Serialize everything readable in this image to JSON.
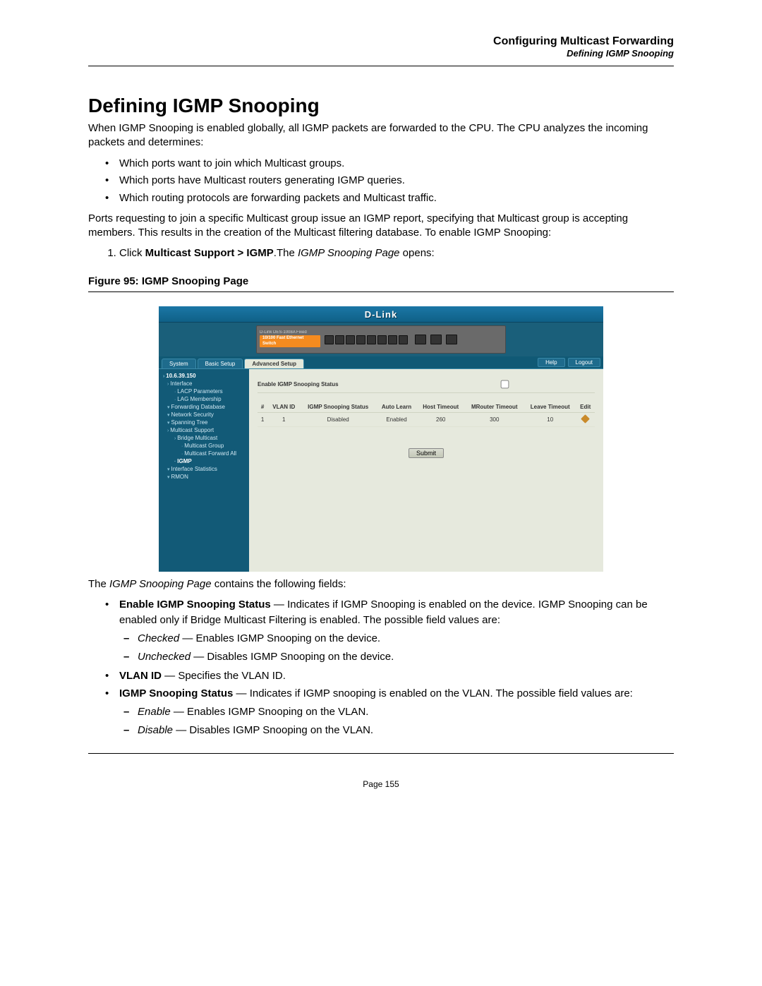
{
  "header": {
    "chapter": "Configuring Multicast Forwarding",
    "section": "Defining IGMP Snooping"
  },
  "title": "Defining IGMP Snooping",
  "intro_para": "When IGMP Snooping is enabled globally, all IGMP packets are forwarded to the CPU. The CPU analyzes the incoming packets and determines:",
  "intro_bullets": [
    "Which ports want to join which Multicast groups.",
    "Which ports have Multicast routers generating IGMP queries.",
    "Which routing protocols are forwarding packets and Multicast traffic."
  ],
  "para2": "Ports requesting to join a specific Multicast group issue an IGMP report, specifying that Multicast group is accepting members. This results in the creation of the Multicast filtering database. To enable IGMP Snooping:",
  "step1_prefix": "Click ",
  "step1_bold": "Multicast Support > IGMP",
  "step1_mid": ".The ",
  "step1_ital": "IGMP Snooping Page",
  "step1_suffix": " opens:",
  "figure_caption": "Figure 95:  IGMP Snooping Page",
  "screenshot": {
    "brand": "D-Link",
    "device_name_line1": "D-Link",
    "device_name_line2": "DES-1008A Fixed",
    "device_badge": "10/100 Fast Ethernet Switch",
    "tabs": {
      "system": "System",
      "basic": "Basic Setup",
      "advanced": "Advanced Setup"
    },
    "top_buttons": {
      "help": "Help",
      "logout": "Logout"
    },
    "sidebar": {
      "root": "10.6.39.150",
      "interface": "Interface",
      "lacp": "LACP Parameters",
      "lag_mem": "LAG Membership",
      "fwd_db": "Forwarding Database",
      "net_sec": "Network Security",
      "span_tree": "Spanning Tree",
      "mcast_supp": "Multicast Support",
      "bridge_mc": "Bridge Multicast",
      "mc_group": "Multicast Group",
      "mc_fwd_all": "Multicast Forward All",
      "igmp": "IGMP",
      "if_stats": "Interface Statistics",
      "rmon": "RMON"
    },
    "main": {
      "enable_label": "Enable IGMP Snooping Status",
      "table_headers": {
        "num": "#",
        "vlan": "VLAN ID",
        "snoop": "IGMP Snooping Status",
        "auto": "Auto Learn",
        "host": "Host Timeout",
        "mrouter": "MRouter Timeout",
        "leave": "Leave Timeout",
        "edit": "Edit"
      },
      "row": {
        "num": "1",
        "vlan": "1",
        "snoop": "Disabled",
        "auto": "Enabled",
        "host": "260",
        "mrouter": "300",
        "leave": "10"
      },
      "submit": "Submit"
    }
  },
  "after_fig_para_prefix": "The ",
  "after_fig_para_ital": "IGMP Snooping Page",
  "after_fig_para_suffix": " contains the following fields:",
  "fields": {
    "enable": {
      "bold": "Enable IGMP Snooping Status",
      "rest": " — Indicates if IGMP Snooping is enabled on the device. IGMP Snooping can be enabled only if Bridge Multicast Filtering is enabled. The possible field values are:",
      "checked_i": "Checked",
      "checked_r": " — Enables IGMP Snooping on the device.",
      "unchecked_i": "Unchecked",
      "unchecked_r": " — Disables IGMP Snooping on the device."
    },
    "vlan": {
      "bold": "VLAN ID",
      "rest": " — Specifies the VLAN ID."
    },
    "status": {
      "bold": "IGMP Snooping Status",
      "rest": " — Indicates if IGMP snooping is enabled on the VLAN. The possible field values are:",
      "enable_i": "Enable",
      "enable_r": " — Enables IGMP Snooping on the VLAN.",
      "disable_i": "Disable",
      "disable_r": " — Disables IGMP Snooping on the VLAN."
    }
  },
  "footer": "Page 155"
}
